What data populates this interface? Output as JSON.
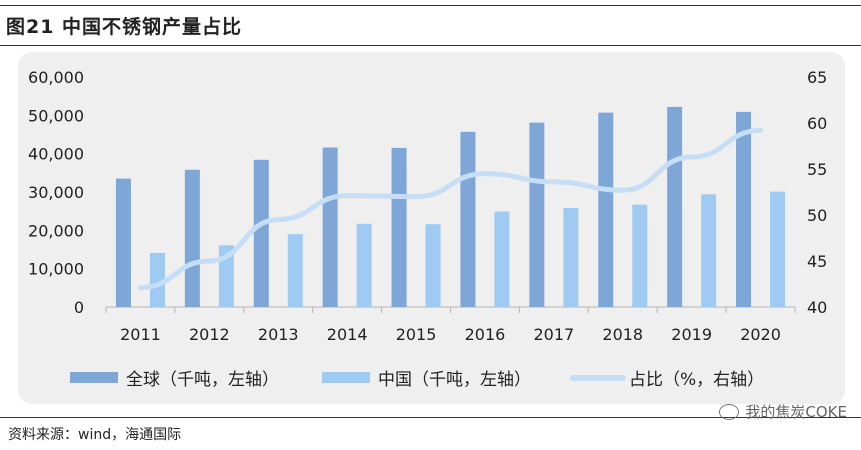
{
  "figure": {
    "title": "图21 中国不锈钢产量占比",
    "source": "资料来源：wind，海通国际",
    "watermark": "我的焦炭COKE"
  },
  "colors": {
    "global_bar": "#7ea6d6",
    "china_bar": "#9fcaf2",
    "share_line": "#c6ddf6",
    "panel_bg": "#efefef"
  },
  "chart_data": {
    "type": "bar",
    "categories": [
      "2011",
      "2012",
      "2013",
      "2014",
      "2015",
      "2016",
      "2017",
      "2018",
      "2019",
      "2020"
    ],
    "series": [
      {
        "name": "全球（千吨，左轴）",
        "type": "bar",
        "axis": "left",
        "values": [
          33500,
          35800,
          38400,
          41600,
          41500,
          45700,
          48100,
          50700,
          52200,
          50900
        ]
      },
      {
        "name": "中国（千吨，左轴）",
        "type": "bar",
        "axis": "left",
        "values": [
          14100,
          16100,
          19000,
          21700,
          21600,
          24900,
          25800,
          26700,
          29400,
          30100
        ]
      },
      {
        "name": "占比（%，右轴）",
        "type": "line",
        "axis": "right",
        "values": [
          42.1,
          45.0,
          49.5,
          52.1,
          52.0,
          54.5,
          53.6,
          52.7,
          56.3,
          59.2
        ]
      }
    ],
    "y_left": {
      "ylim": [
        0,
        60000
      ],
      "ticks": [
        "0",
        "10,000",
        "20,000",
        "30,000",
        "40,000",
        "50,000",
        "60,000"
      ]
    },
    "y_right": {
      "ylim": [
        40,
        65
      ],
      "ticks": [
        "40",
        "45",
        "50",
        "55",
        "60",
        "65"
      ]
    },
    "grid": false,
    "legend_position": "bottom"
  }
}
